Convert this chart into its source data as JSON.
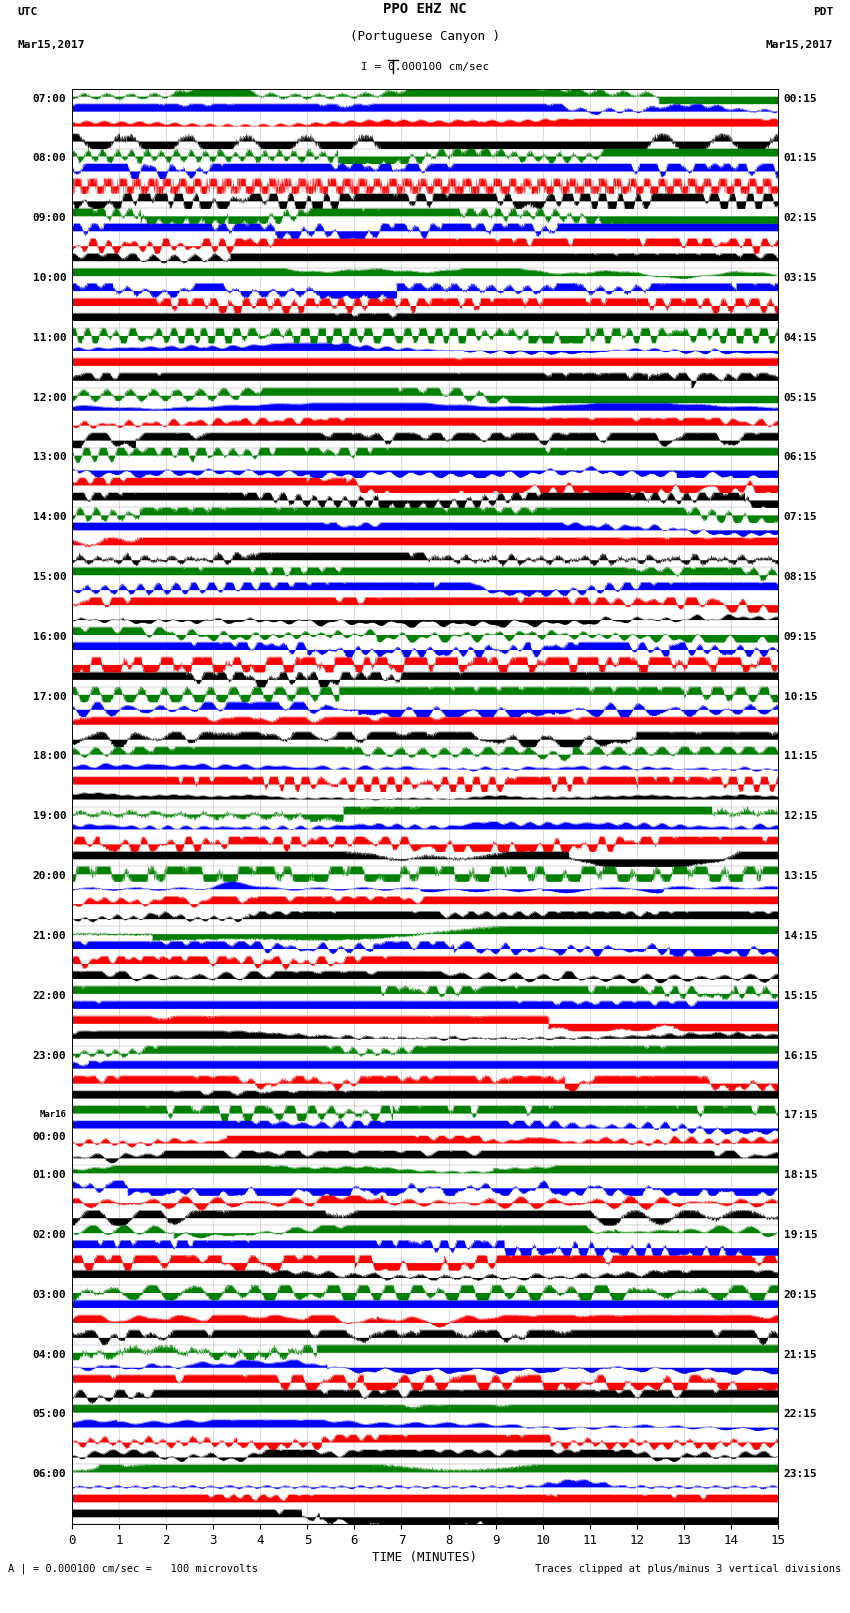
{
  "title_line1": "PPO EHZ NC",
  "title_line2": "(Portuguese Canyon )",
  "title_scale": "I = 0.000100 cm/sec",
  "utc_label": "UTC",
  "utc_date": "Mar15,2017",
  "pdt_label": "PDT",
  "pdt_date": "Mar15,2017",
  "xlabel": "TIME (MINUTES)",
  "footer_left": "A | = 0.000100 cm/sec =   100 microvolts",
  "footer_right": "Traces clipped at plus/minus 3 vertical divisions",
  "xlim": [
    0,
    15
  ],
  "xticks": [
    0,
    1,
    2,
    3,
    4,
    5,
    6,
    7,
    8,
    9,
    10,
    11,
    12,
    13,
    14,
    15
  ],
  "left_times": [
    "07:00",
    "08:00",
    "09:00",
    "10:00",
    "11:00",
    "12:00",
    "13:00",
    "14:00",
    "15:00",
    "16:00",
    "17:00",
    "18:00",
    "19:00",
    "20:00",
    "21:00",
    "22:00",
    "23:00",
    "Mar16\n00:00",
    "01:00",
    "02:00",
    "03:00",
    "04:00",
    "05:00",
    "06:00"
  ],
  "right_times": [
    "00:15",
    "01:15",
    "02:15",
    "03:15",
    "04:15",
    "05:15",
    "06:15",
    "07:15",
    "08:15",
    "09:15",
    "10:15",
    "11:15",
    "12:15",
    "13:15",
    "14:15",
    "15:15",
    "16:15",
    "17:15",
    "18:15",
    "19:15",
    "20:15",
    "21:15",
    "22:15",
    "23:15"
  ],
  "n_rows": 24,
  "bg_color": "white",
  "trace_colors": [
    "black",
    "red",
    "blue",
    "green"
  ],
  "n_traces_per_row": 4,
  "seed": 42
}
